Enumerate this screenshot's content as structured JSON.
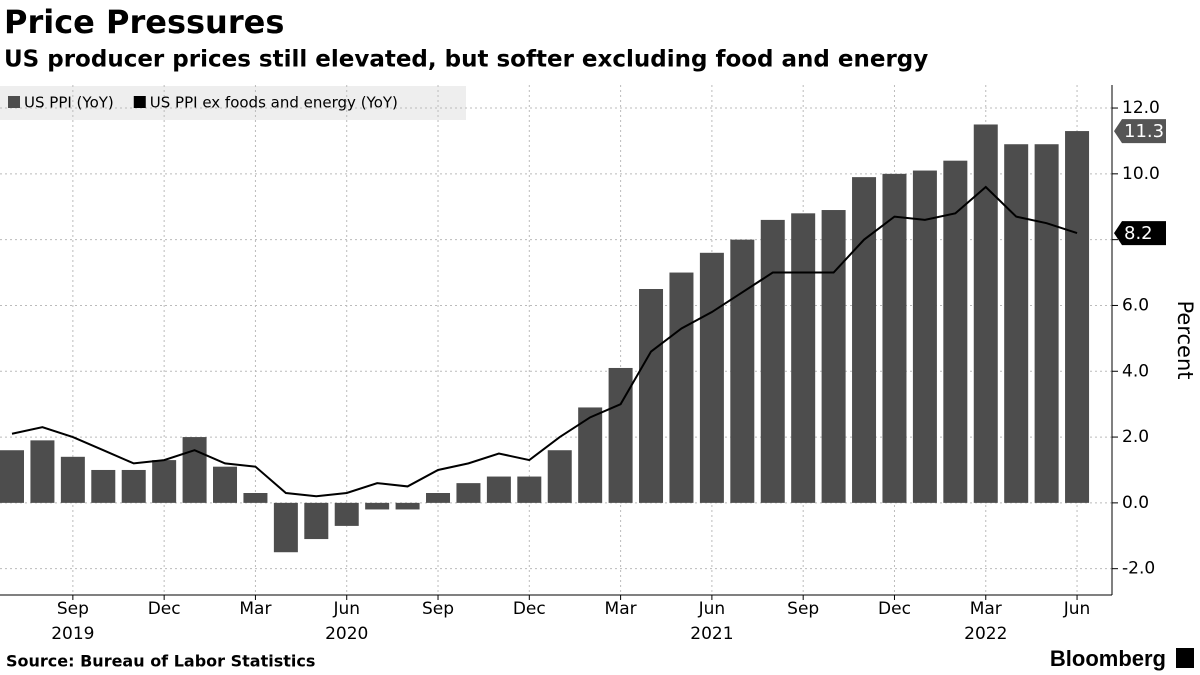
{
  "chart_data": {
    "type": "bar",
    "title": "Price Pressures",
    "subtitle": "US producer prices still elevated, but softer excluding food and energy",
    "y_axis_label": "Percent",
    "source": "Source: Bureau of Labor Statistics",
    "brand": "Bloomberg",
    "categories": [
      null,
      null,
      "Sep",
      null,
      null,
      "Dec",
      null,
      null,
      "Mar",
      null,
      null,
      "Jun",
      null,
      null,
      "Sep",
      null,
      null,
      "Dec",
      null,
      null,
      "Mar",
      null,
      null,
      "Jun",
      null,
      null,
      "Sep",
      null,
      null,
      "Dec",
      null,
      null,
      "Mar",
      null,
      null,
      "Jun"
    ],
    "years": [
      null,
      null,
      "2019",
      null,
      null,
      null,
      null,
      null,
      null,
      null,
      null,
      "2020",
      null,
      null,
      null,
      null,
      null,
      null,
      null,
      null,
      null,
      null,
      null,
      "2021",
      null,
      null,
      null,
      null,
      null,
      null,
      null,
      null,
      "2022",
      null,
      null,
      null
    ],
    "series": [
      {
        "name": "US PPI (YoY)",
        "color": "#4d4d4d",
        "type": "bar",
        "values": [
          1.6,
          1.9,
          1.4,
          1.0,
          1.0,
          1.3,
          2.0,
          1.1,
          0.3,
          -1.5,
          -1.1,
          -0.7,
          -0.2,
          -0.2,
          0.3,
          0.6,
          0.8,
          0.8,
          1.6,
          2.9,
          4.1,
          6.5,
          7.0,
          7.6,
          8.0,
          8.6,
          8.8,
          8.9,
          9.9,
          10.0,
          10.1,
          10.4,
          11.5,
          10.9,
          10.9,
          11.3
        ]
      },
      {
        "name": "US PPI ex foods and energy (YoY)",
        "color": "#000000",
        "type": "line",
        "values": [
          2.1,
          2.3,
          2.0,
          1.6,
          1.2,
          1.3,
          1.6,
          1.2,
          1.1,
          0.3,
          0.2,
          0.3,
          0.6,
          0.5,
          1.0,
          1.2,
          1.5,
          1.3,
          2.0,
          2.6,
          3.0,
          4.6,
          5.3,
          5.8,
          6.4,
          7.0,
          7.0,
          7.0,
          8.0,
          8.7,
          8.6,
          8.8,
          9.6,
          8.7,
          8.5,
          8.2
        ]
      }
    ],
    "ylim": [
      -2.8,
      12.7
    ],
    "yticks": [
      {
        "value": -2,
        "label": "-2.0"
      },
      {
        "value": 0,
        "label": "0.0"
      },
      {
        "value": 2,
        "label": "2.0"
      },
      {
        "value": 4,
        "label": "4.0"
      },
      {
        "value": 6,
        "label": "6.0"
      },
      {
        "value": 8,
        "label": "8.0"
      },
      {
        "value": 10,
        "label": "10.0"
      },
      {
        "value": 12,
        "label": "12.0"
      }
    ],
    "grid": true
  }
}
